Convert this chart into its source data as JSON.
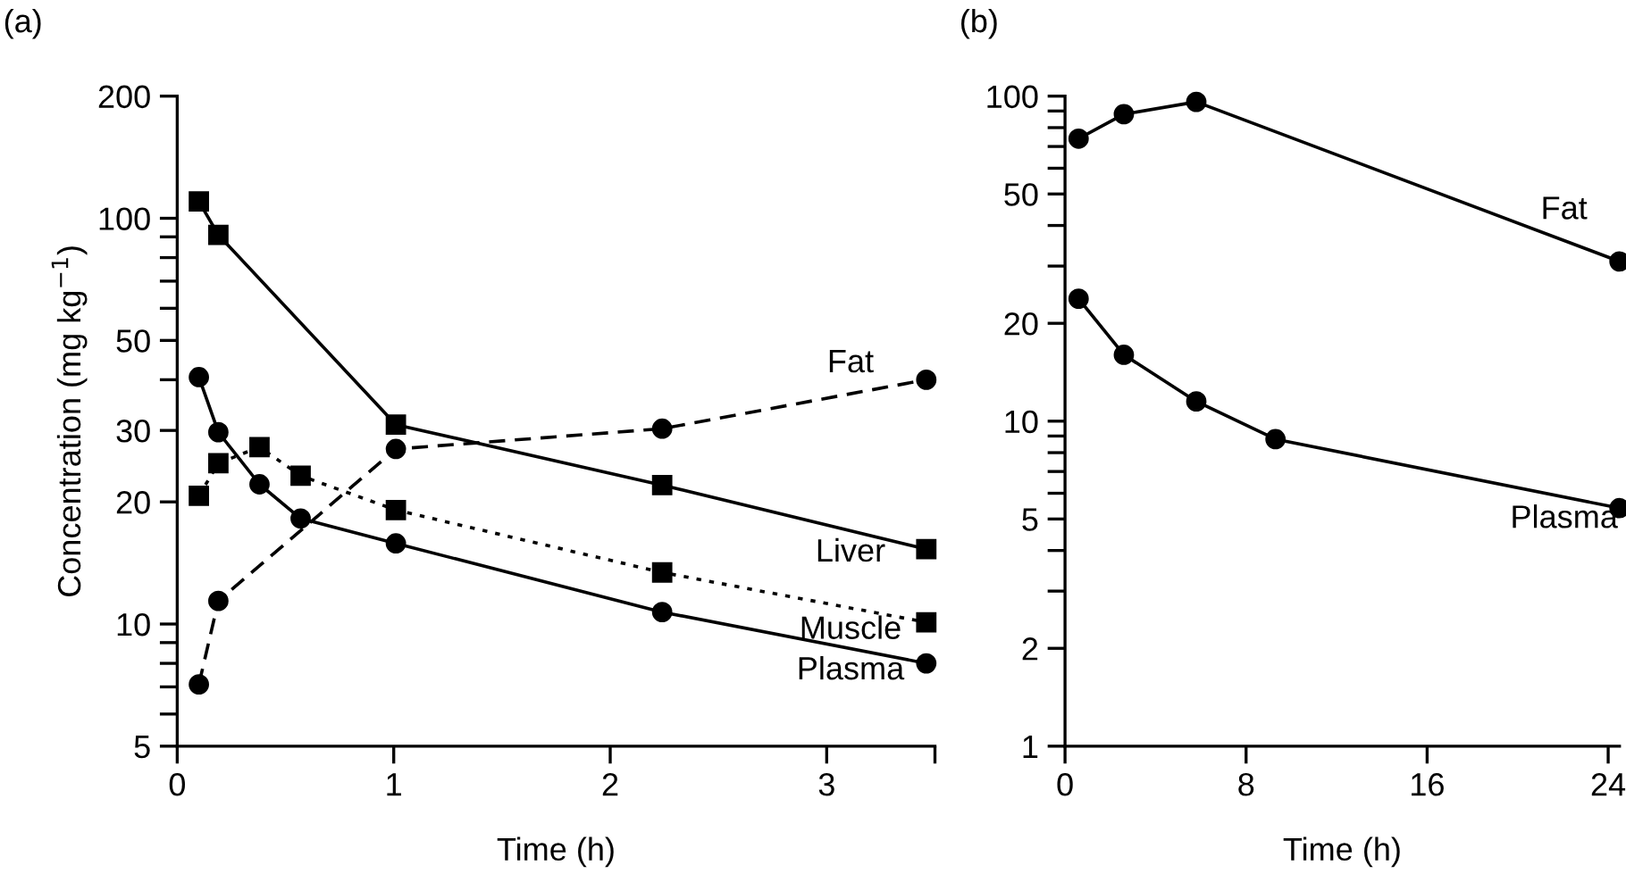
{
  "chart_data": [
    {
      "type": "line",
      "xlabel": "Time (h)",
      "ylabel": "Concentration (mg kg$^{−1}$)",
      "annotations": [
        "(a)"
      ],
      "log": "y",
      "grid": false,
      "legend": false,
      "xlim": [
        0,
        3.5
      ],
      "xticks": [
        0,
        1,
        2,
        3,
        {
          "value": 3.5,
          "label": null
        }
      ],
      "ylim": [
        5,
        200
      ],
      "yticks": [
        5,
        {
          "value": 6,
          "label": null
        },
        {
          "value": 7,
          "label": null
        },
        {
          "value": 8,
          "label": null
        },
        {
          "value": 9,
          "label": null
        },
        10,
        20,
        30,
        {
          "value": 40,
          "label": null
        },
        50,
        {
          "value": 60,
          "label": null
        },
        {
          "value": 70,
          "label": null
        },
        {
          "value": 80,
          "label": null
        },
        {
          "value": 90,
          "label": null
        },
        100,
        200
      ],
      "series": [
        {
          "name": "Fat",
          "color": "#000000",
          "marker": "circle",
          "line_style": "dashed",
          "x": [
            0.1,
            0.19,
            1.01,
            2.24,
            3.46
          ],
          "values": [
            7.1,
            11.4,
            27,
            30.3,
            40
          ]
        },
        {
          "name": "Liver",
          "color": "#000000",
          "marker": "square",
          "line_style": "solid",
          "x": [
            0.1,
            0.19,
            1.01,
            2.24,
            3.46
          ],
          "values": [
            110,
            91,
            31,
            22,
            15.3
          ]
        },
        {
          "name": "Muscle",
          "color": "#000000",
          "marker": "square",
          "line_style": "dotted",
          "x": [
            0.1,
            0.19,
            0.38,
            0.57,
            1.01,
            2.24,
            3.46
          ],
          "values": [
            20.7,
            24.9,
            27.3,
            23.2,
            19.1,
            13.4,
            10.1
          ]
        },
        {
          "name": "Plasma",
          "color": "#000000",
          "marker": "circle",
          "line_style": "solid",
          "x": [
            0.1,
            0.19,
            0.38,
            0.57,
            1.01,
            2.24,
            3.46
          ],
          "values": [
            40.6,
            29.7,
            22.1,
            18.2,
            15.8,
            10.7,
            8.0
          ]
        }
      ]
    },
    {
      "type": "line",
      "xlabel": "Time (h)",
      "annotations": [
        "(b)"
      ],
      "log": "y",
      "grid": false,
      "legend": false,
      "xlim": [
        0,
        24.5
      ],
      "xticks": [
        0,
        8,
        16,
        24
      ],
      "ylim": [
        1,
        100
      ],
      "yticks": [
        1,
        2,
        {
          "value": 3,
          "label": null
        },
        {
          "value": 4,
          "label": null
        },
        5,
        {
          "value": 6,
          "label": null
        },
        {
          "value": 7,
          "label": null
        },
        {
          "value": 8,
          "label": null
        },
        {
          "value": 9,
          "label": null
        },
        10,
        20,
        {
          "value": 30,
          "label": null
        },
        {
          "value": 40,
          "label": null
        },
        50,
        {
          "value": 60,
          "label": null
        },
        {
          "value": 70,
          "label": null
        },
        {
          "value": 80,
          "label": null
        },
        {
          "value": 90,
          "label": null
        },
        100
      ],
      "series": [
        {
          "name": "Fat",
          "color": "#000000",
          "marker": "circle",
          "line_style": "solid",
          "x": [
            0.6,
            2.6,
            5.8,
            24.5
          ],
          "values": [
            74,
            88,
            96,
            31
          ]
        },
        {
          "name": "Plasma",
          "color": "#000000",
          "marker": "circle",
          "line_style": "solid",
          "x": [
            0.6,
            2.6,
            5.8,
            9.3,
            24.5
          ],
          "values": [
            23.8,
            16.0,
            11.5,
            8.8,
            5.4
          ]
        }
      ]
    }
  ]
}
